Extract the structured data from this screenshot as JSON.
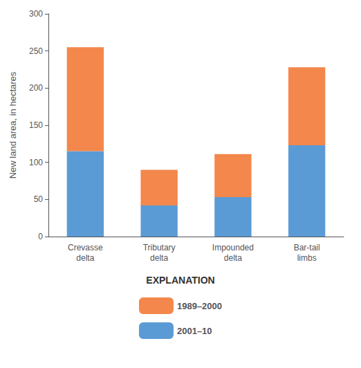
{
  "chart_data": {
    "type": "bar",
    "stacked": true,
    "categories": [
      "Crevasse\ndelta",
      "Tributary\ndelta",
      "Impounded\ndelta",
      "Bar-tail\nlimbs"
    ],
    "series": [
      {
        "name": "2001–10",
        "color": "#5B9BD5",
        "values": [
          115,
          42,
          53,
          123
        ]
      },
      {
        "name": "1989–2000",
        "color": "#F4874B",
        "values": [
          140,
          48,
          58,
          105
        ]
      }
    ],
    "ylabel": "New land area, in hectares",
    "ylim": [
      0,
      300
    ],
    "yticks": [
      0,
      50,
      100,
      150,
      200,
      250,
      300
    ],
    "legend_title": "EXPLANATION",
    "legend": "bottom",
    "grid": false
  }
}
